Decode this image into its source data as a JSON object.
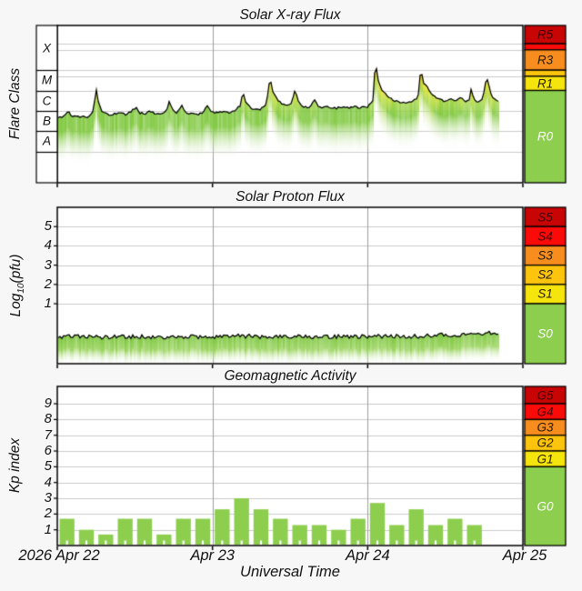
{
  "page": {
    "background": "#f7f7f7",
    "plot_background": "#ffffff",
    "grid_color": "#cbcbcb",
    "day_grid_color": "#9e9e9e",
    "border_color": "#000000"
  },
  "xaxis": {
    "label": "Universal Time",
    "day_labels": [
      "2026 Apr 22",
      "Apr 23",
      "Apr 24",
      "Apr 25"
    ],
    "days": 3,
    "minor_tick_hours": 3,
    "data_end_hour": 68.3
  },
  "chart_data": [
    {
      "type": "area",
      "id": "xray",
      "title": "Solar X-ray Flux",
      "ylabel": "Flare Class",
      "y_unit": "log10 W/m2",
      "ylim": [
        -9.54,
        -1.8
      ],
      "grid_values": [
        -2.7,
        -3,
        -4,
        -4.3,
        -5,
        -6,
        -7,
        -8
      ],
      "class_bands": [
        {
          "label": "X",
          "lower": -4,
          "upper": -1.8
        },
        {
          "label": "M",
          "lower": -5,
          "upper": -4
        },
        {
          "label": "C",
          "lower": -6,
          "upper": -5
        },
        {
          "label": "B",
          "lower": -7,
          "upper": -6
        },
        {
          "label": "A",
          "lower": -8,
          "upper": -7
        }
      ],
      "series_hours": [
        0,
        1,
        1.7,
        2.2,
        3,
        4,
        5,
        5.7,
        5.9,
        6.3,
        6.8,
        7.5,
        8.5,
        9.5,
        10.5,
        11.5,
        12.2,
        12.8,
        13.5,
        14.3,
        15,
        16,
        17,
        17.3,
        17.8,
        18.5,
        19.3,
        19.8,
        20.5,
        21.5,
        22.5,
        23.2,
        23.7,
        24.5,
        25.5,
        26.5,
        27.5,
        28.3,
        28.7,
        29.2,
        29.8,
        30.5,
        31.5,
        32.3,
        32.9,
        33.3,
        33.8,
        34.5,
        35.3,
        36.2,
        36.8,
        37.3,
        38,
        39,
        39.7,
        40.3,
        41,
        42,
        43,
        44,
        45,
        46,
        47,
        48,
        48.8,
        49.2,
        49.6,
        50,
        50.6,
        51.5,
        52.5,
        53.5,
        54.5,
        55.5,
        56,
        56.2,
        56.5,
        57,
        57.5,
        58.2,
        59,
        60,
        60.8,
        61.5,
        62.3,
        63,
        63.8,
        64,
        64.4,
        65,
        65.8,
        66.4,
        66.9,
        67.3,
        68,
        68.3
      ],
      "series_values": [
        -6.32,
        -6.28,
        -6.05,
        -6.25,
        -6.3,
        -6.28,
        -6.3,
        -5.9,
        -4.72,
        -5.5,
        -5.95,
        -6.15,
        -6.2,
        -6.1,
        -6.18,
        -6.0,
        -5.82,
        -6.1,
        -6.15,
        -5.98,
        -6.12,
        -6.18,
        -5.9,
        -5.52,
        -5.95,
        -6.1,
        -5.72,
        -6.05,
        -6.15,
        -6.18,
        -6.1,
        -5.72,
        -6.0,
        -6.1,
        -6.05,
        -6.1,
        -6.0,
        -5.75,
        -5.1,
        -5.6,
        -5.85,
        -5.95,
        -5.9,
        -5.7,
        -4.35,
        -5.0,
        -5.35,
        -5.6,
        -5.75,
        -5.6,
        -4.95,
        -5.6,
        -5.8,
        -5.85,
        -5.42,
        -5.75,
        -5.85,
        -5.8,
        -5.88,
        -5.82,
        -5.85,
        -5.8,
        -5.85,
        -5.8,
        -5.5,
        -3.55,
        -4.5,
        -4.85,
        -5.15,
        -5.4,
        -5.55,
        -5.6,
        -5.55,
        -5.45,
        -5.0,
        -3.62,
        -4.55,
        -4.75,
        -5.0,
        -5.25,
        -5.45,
        -5.55,
        -5.35,
        -5.5,
        -5.3,
        -5.55,
        -5.45,
        -4.92,
        -5.4,
        -5.6,
        -5.35,
        -4.32,
        -5.0,
        -5.35,
        -5.5,
        -5.55
      ],
      "noise": 0.05,
      "fade_decades": 2.3,
      "scale": [
        {
          "label": "R5",
          "range": [
            -2.7,
            -1.8
          ],
          "color": "#c80404",
          "text_color": "#400000"
        },
        {
          "label": "",
          "range": [
            -3,
            -2.7
          ],
          "color": "#fb0a0a",
          "text_color": "#400000"
        },
        {
          "label": "R3",
          "range": [
            -4,
            -3
          ],
          "color": "#f78d1e",
          "text_color": "#241a00"
        },
        {
          "label": "",
          "range": [
            -4.3,
            -4
          ],
          "color": "#fcc40d",
          "text_color": "#241a00"
        },
        {
          "label": "R1",
          "range": [
            -5,
            -4.3
          ],
          "color": "#f6e50c",
          "text_color": "#241a00"
        },
        {
          "label": "R0",
          "range": [
            -9.54,
            -5
          ],
          "color": "#8dce4e",
          "text_color": "#ffffff"
        }
      ]
    },
    {
      "type": "area",
      "id": "proton",
      "title": "Solar Proton Flux",
      "ylabel_parts": {
        "pre": "Log",
        "sub": "10",
        "post": "(pfu)"
      },
      "ylim": [
        -2.11,
        6.0
      ],
      "yticks": [
        1,
        2,
        3,
        4,
        5
      ],
      "series_hours": [
        0,
        4,
        8,
        12,
        16,
        20,
        24,
        28,
        32,
        36,
        40,
        44,
        48,
        52,
        56,
        58,
        60,
        62,
        64,
        66,
        67.5,
        68.3
      ],
      "series_values": [
        -0.72,
        -0.69,
        -0.73,
        -0.7,
        -0.72,
        -0.7,
        -0.72,
        -0.68,
        -0.71,
        -0.7,
        -0.72,
        -0.7,
        -0.71,
        -0.7,
        -0.69,
        -0.66,
        -0.63,
        -0.6,
        -0.56,
        -0.52,
        -0.55,
        -0.6
      ],
      "noise": 0.11,
      "fade_decades": 1.45,
      "scale": [
        {
          "label": "S5",
          "range": [
            5,
            6.0
          ],
          "color": "#c80404",
          "text_color": "#400000"
        },
        {
          "label": "S4",
          "range": [
            4,
            5
          ],
          "color": "#fb0a0a",
          "text_color": "#400000"
        },
        {
          "label": "S3",
          "range": [
            3,
            4
          ],
          "color": "#f78d1e",
          "text_color": "#241a00"
        },
        {
          "label": "S2",
          "range": [
            2,
            3
          ],
          "color": "#fcc40d",
          "text_color": "#241a00"
        },
        {
          "label": "S1",
          "range": [
            1,
            2
          ],
          "color": "#f6e50c",
          "text_color": "#241a00"
        },
        {
          "label": "S0",
          "range": [
            -2.11,
            1
          ],
          "color": "#8dce4e",
          "text_color": "#ffffff"
        }
      ]
    },
    {
      "type": "bar",
      "id": "kp",
      "title": "Geomagnetic Activity",
      "ylabel": "Kp index",
      "ylim": [
        0,
        10.1
      ],
      "yticks": [
        1,
        2,
        3,
        4,
        5,
        6,
        7,
        8,
        9
      ],
      "bar_duration_hours": 3,
      "values": [
        1.7,
        1.0,
        0.7,
        1.7,
        1.7,
        0.7,
        1.7,
        1.7,
        2.3,
        3.0,
        2.3,
        1.7,
        1.3,
        1.3,
        1.0,
        1.7,
        2.7,
        1.3,
        2.3,
        1.3,
        1.7,
        1.3
      ],
      "bar_color": "#8dce4e",
      "scale": [
        {
          "label": "G5",
          "range": [
            9,
            10.1
          ],
          "color": "#c80404",
          "text_color": "#400000"
        },
        {
          "label": "G4",
          "range": [
            8,
            9
          ],
          "color": "#fb0a0a",
          "text_color": "#400000"
        },
        {
          "label": "G3",
          "range": [
            7,
            8
          ],
          "color": "#f78d1e",
          "text_color": "#241a00"
        },
        {
          "label": "G2",
          "range": [
            6,
            7
          ],
          "color": "#fcc40d",
          "text_color": "#241a00"
        },
        {
          "label": "G1",
          "range": [
            5,
            6
          ],
          "color": "#f6e50c",
          "text_color": "#241a00"
        },
        {
          "label": "G0",
          "range": [
            0,
            5
          ],
          "color": "#8dce4e",
          "text_color": "#ffffff"
        }
      ]
    }
  ]
}
